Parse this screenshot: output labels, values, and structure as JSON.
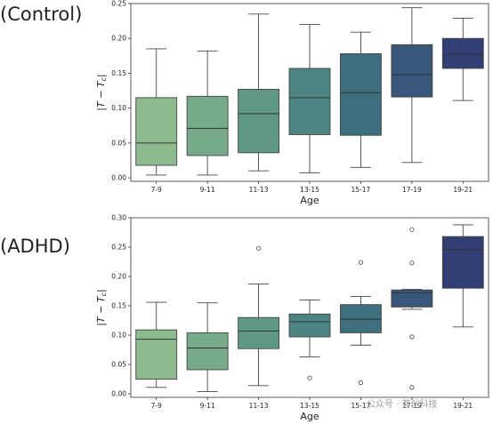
{
  "panels": {
    "control_label": "(Control)",
    "adhd_label": "(ADHD)"
  },
  "watermark": "公众号 · 茗创科技",
  "chart_data": [
    {
      "type": "box",
      "id": "control",
      "title": "",
      "xlabel": "Age",
      "ylabel": "|T − T_c|",
      "ylim": [
        -0.005,
        0.25
      ],
      "yticks": [
        0.0,
        0.05,
        0.1,
        0.15,
        0.2,
        0.25
      ],
      "ytick_labels": [
        "0.00",
        "0.05",
        "0.10",
        "0.15",
        "0.20",
        "0.25"
      ],
      "categories": [
        "7-9",
        "9-11",
        "11-13",
        "13-15",
        "15-17",
        "17-19",
        "19-21"
      ],
      "colors": [
        "#8dbb8e",
        "#76ab8a",
        "#5f9886",
        "#4b8483",
        "#3d6f7f",
        "#38577a",
        "#323f74"
      ],
      "boxes": [
        {
          "whislo": 0.004,
          "q1": 0.018,
          "med": 0.05,
          "q3": 0.115,
          "whishi": 0.185,
          "fliers": []
        },
        {
          "whislo": 0.004,
          "q1": 0.032,
          "med": 0.071,
          "q3": 0.117,
          "whishi": 0.182,
          "fliers": []
        },
        {
          "whislo": 0.01,
          "q1": 0.036,
          "med": 0.092,
          "q3": 0.127,
          "whishi": 0.235,
          "fliers": []
        },
        {
          "whislo": 0.007,
          "q1": 0.062,
          "med": 0.115,
          "q3": 0.157,
          "whishi": 0.22,
          "fliers": []
        },
        {
          "whislo": 0.015,
          "q1": 0.061,
          "med": 0.122,
          "q3": 0.178,
          "whishi": 0.209,
          "fliers": []
        },
        {
          "whislo": 0.022,
          "q1": 0.116,
          "med": 0.148,
          "q3": 0.191,
          "whishi": 0.244,
          "fliers": []
        },
        {
          "whislo": 0.111,
          "q1": 0.157,
          "med": 0.177,
          "q3": 0.2,
          "whishi": 0.229,
          "fliers": []
        }
      ]
    },
    {
      "type": "box",
      "id": "adhd",
      "title": "",
      "xlabel": "Age",
      "ylabel": "|T − T_c|",
      "ylim": [
        -0.006,
        0.3
      ],
      "yticks": [
        0.0,
        0.05,
        0.1,
        0.15,
        0.2,
        0.25,
        0.3
      ],
      "ytick_labels": [
        "0.00",
        "0.05",
        "0.10",
        "0.15",
        "0.20",
        "0.25",
        "0.30"
      ],
      "categories": [
        "7-9",
        "9-11",
        "11-13",
        "13-15",
        "15-17",
        "17-19",
        "19-21"
      ],
      "colors": [
        "#8dbb8e",
        "#76ab8a",
        "#5f9886",
        "#4b8483",
        "#3d6f7f",
        "#38577a",
        "#323f74"
      ],
      "boxes": [
        {
          "whislo": 0.011,
          "q1": 0.025,
          "med": 0.093,
          "q3": 0.109,
          "whishi": 0.156,
          "fliers": []
        },
        {
          "whislo": 0.004,
          "q1": 0.041,
          "med": 0.078,
          "q3": 0.104,
          "whishi": 0.155,
          "fliers": []
        },
        {
          "whislo": 0.014,
          "q1": 0.077,
          "med": 0.107,
          "q3": 0.13,
          "whishi": 0.187,
          "fliers": [
            0.248
          ]
        },
        {
          "whislo": 0.063,
          "q1": 0.097,
          "med": 0.123,
          "q3": 0.136,
          "whishi": 0.16,
          "fliers": [
            0.027
          ]
        },
        {
          "whislo": 0.083,
          "q1": 0.104,
          "med": 0.127,
          "q3": 0.152,
          "whishi": 0.166,
          "fliers": [
            0.019,
            0.224
          ]
        },
        {
          "whislo": 0.144,
          "q1": 0.148,
          "med": 0.172,
          "q3": 0.177,
          "whishi": 0.178,
          "fliers": [
            0.011,
            0.097,
            0.223,
            0.28
          ]
        },
        {
          "whislo": 0.114,
          "q1": 0.18,
          "med": 0.246,
          "q3": 0.268,
          "whishi": 0.288,
          "fliers": []
        }
      ]
    }
  ]
}
